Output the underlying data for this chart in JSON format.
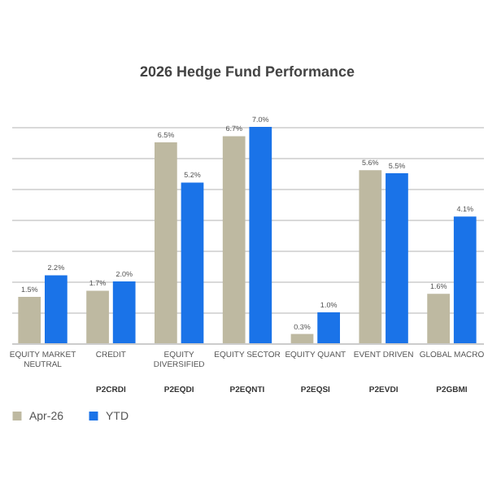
{
  "chart_data": {
    "type": "bar",
    "title": "2026 Hedge Fund Performance",
    "categories": [
      "EQUITY MARKET NEUTRAL",
      "CREDIT",
      "EQUITY DIVERSIFIED",
      "EQUITY SECTOR",
      "EQUITY QUANT",
      "EVENT DRIVEN",
      "GLOBAL MACRO"
    ],
    "series": [
      {
        "name": "Apr-26",
        "color": "#beb9a1",
        "values": [
          1.5,
          1.7,
          6.5,
          6.7,
          0.3,
          5.6,
          1.6
        ],
        "value_labels": [
          "1.5%",
          "1.7%",
          "6.5%",
          "6.7%",
          "0.3%",
          "5.6%",
          "1.6%"
        ]
      },
      {
        "name": "YTD",
        "color": "#1a73e8",
        "values": [
          2.2,
          2.0,
          5.2,
          7.0,
          1.0,
          5.5,
          4.1
        ],
        "value_labels": [
          "2.2%",
          "2.0%",
          "5.2%",
          "7.0%",
          "1.0%",
          "5.5%",
          "4.1%"
        ]
      }
    ],
    "grid": "y",
    "tick_labels": "x",
    "legend": "bottom",
    "annotations": [
      "P2CRDI",
      "P2EQDI",
      "P2EQNTI",
      "P2EQSI",
      "P2EVDI",
      "P2GBMI"
    ]
  }
}
